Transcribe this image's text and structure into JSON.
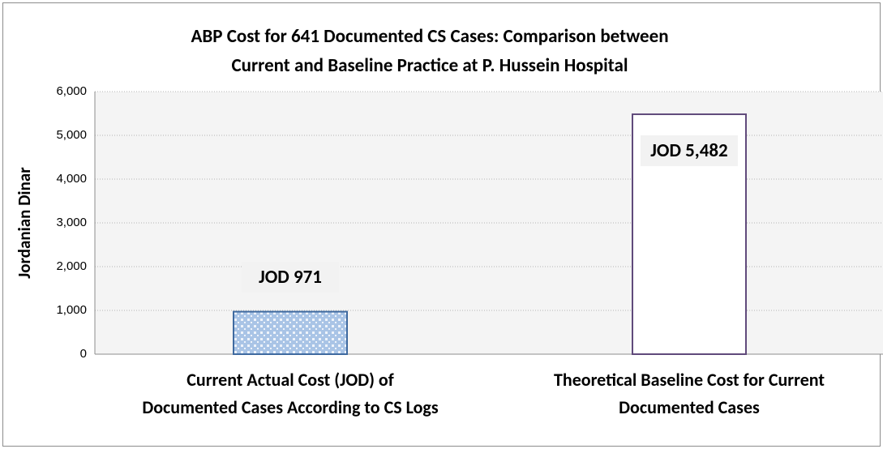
{
  "chart_data": {
    "type": "bar",
    "title": "ABP Cost for 641 Documented CS Cases: Comparison between\nCurrent and Baseline Practice at P. Hussein Hospital",
    "y_label": "Jordanian Dinar",
    "categories": [
      "Current Actual Cost (JOD) of\nDocumented Cases According to CS Logs",
      "Theoretical Baseline Cost for Current\nDocumented Cases"
    ],
    "values": [
      971,
      5482
    ],
    "value_labels": [
      "JOD 971",
      "JOD 5,482"
    ],
    "bar_colors": [
      "#a9c4e6",
      "#ffffff"
    ],
    "edge_colors": [
      "#3f6aa0",
      "#604a7b"
    ],
    "ylim": [
      0,
      6000
    ],
    "yticks": [
      0,
      {
        "value": 1000,
        "label": "1,000"
      },
      {
        "value": 2000,
        "label": "2,000"
      },
      {
        "value": 3000,
        "label": "3,000"
      },
      {
        "value": 4000,
        "label": "4,000"
      },
      {
        "value": 5000,
        "label": "5,000"
      },
      {
        "value": 6000,
        "label": "6,000"
      }
    ],
    "grid": true
  }
}
